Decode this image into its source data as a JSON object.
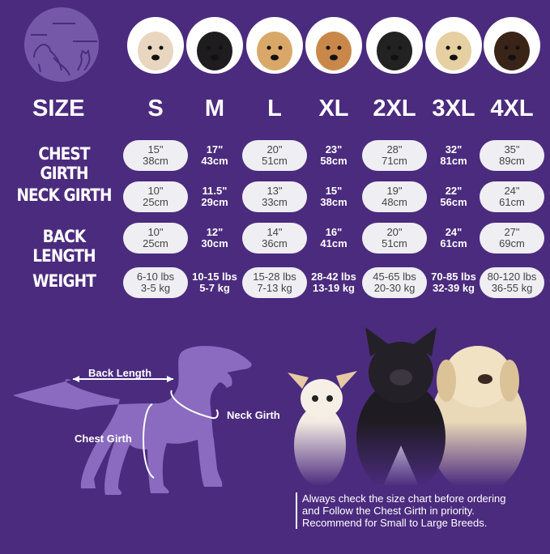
{
  "colors": {
    "background": "#4b2b7e",
    "pill": "#efeef2",
    "silhouette": "#8a6bbf",
    "logo_circle": "#7559a8"
  },
  "logo": {
    "icon": "dog-cat-logo-icon"
  },
  "breed_photos": [
    {
      "icon": "shih-tzu-photo"
    },
    {
      "icon": "boston-terrier-photo"
    },
    {
      "icon": "cocker-spaniel-photo"
    },
    {
      "icon": "beagle-photo"
    },
    {
      "icon": "border-collie-photo"
    },
    {
      "icon": "labrador-photo"
    },
    {
      "icon": "doberman-photo"
    }
  ],
  "table": {
    "size_header": "SIZE",
    "sizes": [
      "S",
      "M",
      "L",
      "XL",
      "2XL",
      "3XL",
      "4XL"
    ],
    "rows": [
      {
        "label": "CHEST GIRTH",
        "values": [
          [
            "15\"",
            "38cm"
          ],
          [
            "17\"",
            "43cm"
          ],
          [
            "20\"",
            "51cm"
          ],
          [
            "23\"",
            "58cm"
          ],
          [
            "28\"",
            "71cm"
          ],
          [
            "32\"",
            "81cm"
          ],
          [
            "35\"",
            "89cm"
          ]
        ]
      },
      {
        "label": "NECK GIRTH",
        "values": [
          [
            "10\"",
            "25cm"
          ],
          [
            "11.5\"",
            "29cm"
          ],
          [
            "13\"",
            "33cm"
          ],
          [
            "15\"",
            "38cm"
          ],
          [
            "19\"",
            "48cm"
          ],
          [
            "22\"",
            "56cm"
          ],
          [
            "24\"",
            "61cm"
          ]
        ]
      },
      {
        "label": "BACK LENGTH",
        "values": [
          [
            "10\"",
            "25cm"
          ],
          [
            "12\"",
            "30cm"
          ],
          [
            "14\"",
            "36cm"
          ],
          [
            "16\"",
            "41cm"
          ],
          [
            "20\"",
            "51cm"
          ],
          [
            "24\"",
            "61cm"
          ],
          [
            "27\"",
            "69cm"
          ]
        ]
      },
      {
        "label": "WEIGHT",
        "values": [
          [
            "6-10 lbs",
            "3-5 kg"
          ],
          [
            "10-15 lbs",
            "5-7 kg"
          ],
          [
            "15-28 lbs",
            "7-13 kg"
          ],
          [
            "28-42 lbs",
            "13-19 kg"
          ],
          [
            "45-65 lbs",
            "20-30 kg"
          ],
          [
            "70-85 lbs",
            "32-39 kg"
          ],
          [
            "80-120 lbs",
            "36-55 kg"
          ]
        ]
      }
    ]
  },
  "diagram": {
    "back_length": "Back Length",
    "neck_girth": "Neck Girth",
    "chest_girth": "Chest Girth"
  },
  "note": [
    "Always check the size chart before ordering",
    "and Follow the Chest Girth in priority.",
    "Recommend for Small to Large Breeds."
  ]
}
